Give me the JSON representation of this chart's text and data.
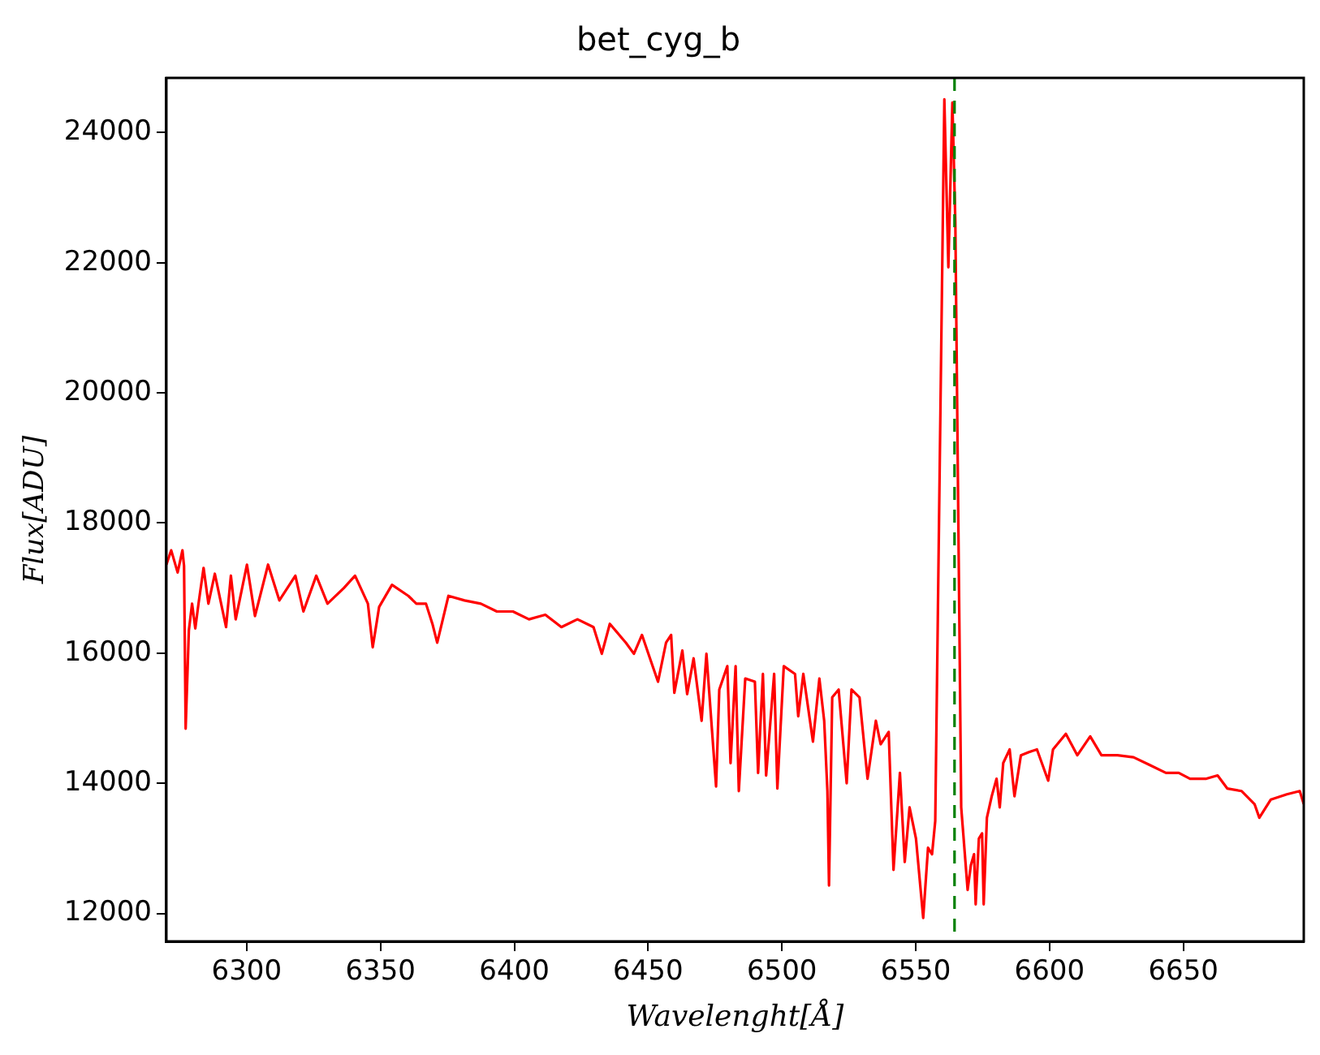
{
  "chart_data": {
    "type": "line",
    "title": "bet_cyg_b",
    "xlabel": "Wavelenght[Å]",
    "ylabel": "Flux[ADU]",
    "xlim": [
      6270,
      6695
    ],
    "ylim": [
      11570,
      24840
    ],
    "xticks": [
      6300,
      6350,
      6400,
      6450,
      6500,
      6550,
      6600,
      6650
    ],
    "yticks": [
      12000,
      14000,
      16000,
      18000,
      20000,
      22000,
      24000
    ],
    "grid": false,
    "legend": false,
    "marker": "none",
    "line_style": "solid",
    "ref_lines": [
      {
        "axis": "x",
        "value": 6564.5,
        "color": "#008000",
        "line_style": "dashed"
      }
    ],
    "series": [
      {
        "color": "#ff0000",
        "x": [
          6270,
          6271.8,
          6274.2,
          6276,
          6276.6,
          6277.2,
          6278.4,
          6279.6,
          6280.8,
          6282,
          6283.9,
          6285.7,
          6288.1,
          6292.3,
          6294.1,
          6295.9,
          6300.1,
          6303.1,
          6308,
          6312.2,
          6318.2,
          6321.2,
          6326,
          6330.2,
          6336.3,
          6340.5,
          6345.3,
          6347.1,
          6349.5,
          6354.3,
          6360.4,
          6363.4,
          6367,
          6369.4,
          6371.2,
          6375.4,
          6381.4,
          6387.5,
          6393.5,
          6399.5,
          6405.5,
          6411.6,
          6417.6,
          6423.6,
          6429.6,
          6432.7,
          6435.7,
          6441.7,
          6444.7,
          6447.7,
          6450.7,
          6453.7,
          6456.7,
          6458.6,
          6459.8,
          6462.8,
          6464.6,
          6467,
          6470,
          6471.8,
          6475.4,
          6476.6,
          6479.6,
          6480.8,
          6482.7,
          6483.9,
          6486.3,
          6489.9,
          6491.1,
          6492.9,
          6494.1,
          6497.1,
          6498.3,
          6500.7,
          6504.9,
          6506.1,
          6508,
          6511.6,
          6514,
          6515.8,
          6517,
          6517.6,
          6518.8,
          6521.2,
          6524.2,
          6526,
          6529,
          6532,
          6535.1,
          6536.9,
          6539.9,
          6541.7,
          6544.1,
          6545.9,
          6547.7,
          6550.1,
          6552.8,
          6554.6,
          6556.1,
          6557.3,
          6560.7,
          6562.2,
          6563.7,
          6564.8,
          6567,
          6569.4,
          6570.6,
          6571.8,
          6572.4,
          6573.6,
          6574.8,
          6575.4,
          6576.6,
          6578.4,
          6580.2,
          6581.4,
          6582.7,
          6585.1,
          6586.9,
          6589.3,
          6592.3,
          6595.3,
          6599.5,
          6601.3,
          6606.1,
          6610.4,
          6615.2,
          6619.4,
          6625.4,
          6631.4,
          6637.5,
          6643.5,
          6648.3,
          6652.5,
          6658.6,
          6662.8,
          6666.4,
          6671.8,
          6676.6,
          6678.4,
          6682.7,
          6688.7,
          6693.5,
          6695
        ],
        "values": [
          17360,
          17580,
          17240,
          17580,
          17340,
          14840,
          16350,
          16760,
          16380,
          16760,
          17310,
          16760,
          17220,
          16400,
          17190,
          16520,
          17360,
          16570,
          17360,
          16810,
          17190,
          16640,
          17190,
          16760,
          17000,
          17190,
          16760,
          16090,
          16710,
          17050,
          16880,
          16760,
          16760,
          16450,
          16160,
          16880,
          16810,
          16760,
          16640,
          16640,
          16520,
          16590,
          16400,
          16520,
          16400,
          15990,
          16450,
          16160,
          15990,
          16280,
          15920,
          15560,
          16160,
          16280,
          15390,
          16040,
          15370,
          15920,
          14960,
          15990,
          13950,
          15440,
          15800,
          14310,
          15800,
          13880,
          15610,
          15560,
          14160,
          15680,
          14120,
          15680,
          13920,
          15800,
          15680,
          15030,
          15680,
          14640,
          15610,
          14960,
          13880,
          12430,
          15320,
          15440,
          14000,
          15440,
          15320,
          14070,
          14960,
          14600,
          14790,
          12670,
          14160,
          12790,
          13630,
          13150,
          11930,
          13010,
          12910,
          13420,
          24510,
          21930,
          24460,
          22630,
          13630,
          12360,
          12740,
          12910,
          12140,
          13150,
          13230,
          12140,
          13470,
          13800,
          14070,
          13630,
          14310,
          14520,
          13800,
          14430,
          14480,
          14520,
          14040,
          14520,
          14760,
          14430,
          14720,
          14430,
          14430,
          14400,
          14280,
          14160,
          14160,
          14070,
          14070,
          14120,
          13920,
          13880,
          13680,
          13470,
          13750,
          13830,
          13880,
          13680
        ]
      }
    ]
  }
}
